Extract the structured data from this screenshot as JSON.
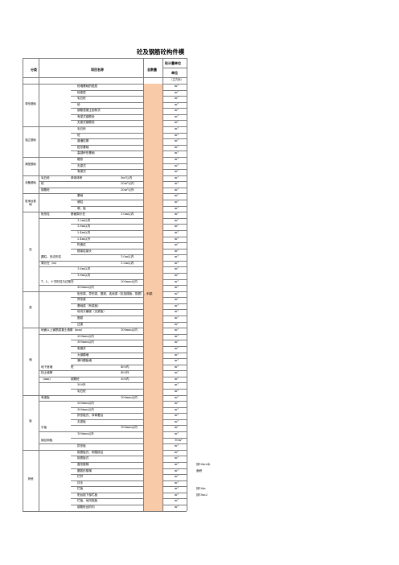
{
  "title": "砼及钢筋砼构件模",
  "header": {
    "col_category": "分类",
    "col_item": "项目名称",
    "col_total": "总数量",
    "col_unit_group": "砼计量单位",
    "col_unit": "单位"
  },
  "unit_note": "（立方米）",
  "colors": {
    "qty_fill": "#f9caa8",
    "grid": "#7a7a7a"
  },
  "categories": [
    {
      "label": "带形基础"
    },
    {
      "label": "独立基础"
    },
    {
      "label": "满堂基础"
    },
    {
      "label": "设备基础"
    },
    {
      "label": "桩承台基础"
    },
    {
      "label": "柱"
    },
    {
      "label": "梁"
    },
    {
      "label": "墙"
    },
    {
      "label": "板"
    },
    {
      "label": "其他"
    }
  ],
  "rows": [
    {
      "item": "砼墙基础的垫层",
      "unit": "m³"
    },
    {
      "item": "砼垫层",
      "unit": "m³"
    },
    {
      "item": "毛石砼",
      "unit": "m³"
    },
    {
      "item": "砼",
      "unit": "m³"
    },
    {
      "item": "钢筋混凝土肋条式",
      "unit": "m³"
    },
    {
      "item": "有梁式钢筋砼",
      "unit": "m³"
    },
    {
      "item": "无梁式钢筋砼",
      "unit": "m³"
    },
    {
      "item": "毛石砼",
      "unit": "m³"
    },
    {
      "item": "砼",
      "unit": "m³"
    },
    {
      "item": "普通柱基",
      "unit": "m³"
    },
    {
      "item": "桩形基础",
      "unit": "m³"
    },
    {
      "item": "高颈杯形基础",
      "unit": "m³"
    },
    {
      "item": "箱形",
      "unit": "m³"
    },
    {
      "item": "无梁式",
      "unit": "m³"
    },
    {
      "item": "有梁式",
      "unit": "m³"
    },
    {
      "sub": "毛石砼",
      "mid": "单体体积",
      "item": "5m³以内",
      "unit": "m³"
    },
    {
      "sub": "砼",
      "item": "20m³以内",
      "unit": "m³"
    },
    {
      "sub": "钢筋砼",
      "item": "20m³以外",
      "unit": "m³"
    },
    {
      "item": "基础",
      "unit": "m³"
    },
    {
      "item": "墙柱",
      "unit": "m³"
    },
    {
      "item": "墩、板",
      "unit": "m³"
    },
    {
      "sub": "矩形柱",
      "mid": "断面周长在",
      "item": "1.0m以内",
      "unit": "m³"
    },
    {
      "item": "1.2m以内",
      "unit": "m³"
    },
    {
      "item": "1.8m以内",
      "unit": "m³"
    },
    {
      "item": "2.4m以内",
      "unit": "m³"
    },
    {
      "item": "2.4m以外",
      "unit": "m³"
    },
    {
      "item": "构造柱",
      "unit": "m³"
    },
    {
      "item": "框架柱接头",
      "unit": "m³"
    },
    {
      "sub": "圆柱、多边形柱",
      "item": "1.0m以内",
      "unit": "m³"
    },
    {
      "sub": "周长在（m）",
      "item": "1.2m以内",
      "unit": "m³"
    },
    {
      "item": "1.6m以内",
      "unit": "m³"
    },
    {
      "item": "1.8m以内",
      "unit": "m³"
    },
    {
      "sub": "T、L、十字形柱与边宽在",
      "item": "200mm以内",
      "unit": "m³"
    },
    {
      "item": "300mm以内",
      "unit": "m³"
    },
    {
      "item": "矩形梁、异形梁、圈梁、连续梁（包括楼板、挑檐）、斜梁",
      "unit": "m³"
    },
    {
      "item": "异形梁",
      "unit": "m³"
    },
    {
      "item": "基础梁（有梁板）",
      "unit": "m³"
    },
    {
      "item": "地沟又横梁（无梁板）",
      "unit": "m³"
    },
    {
      "item": "圈梁",
      "unit": "m³"
    },
    {
      "item": "过梁",
      "unit": "m³"
    },
    {
      "sub": "地面以上钢筋混凝土墙厚（mm）",
      "item": "100mm以内",
      "unit": "m³"
    },
    {
      "item": "200mm以内",
      "unit": "m³"
    },
    {
      "item": "300mm以内",
      "unit": "m³"
    },
    {
      "item": "电梯井",
      "unit": "m³"
    },
    {
      "item": "大钢模墙",
      "unit": "m³"
    },
    {
      "item": "滑升模板墙",
      "unit": "m³"
    },
    {
      "sub": "地下室墙",
      "mid": "砼",
      "item": "400内",
      "unit": "m³"
    },
    {
      "sub": "挡土墙厚",
      "item": "400外",
      "unit": "m³"
    },
    {
      "sub": "（mm）",
      "mid": "钢筋砼",
      "item": "300内",
      "unit": "m³"
    },
    {
      "item": "300外",
      "unit": "m³"
    },
    {
      "item": "毛石砼",
      "unit": "m³"
    },
    {
      "sub": "有梁板",
      "item": "100mm以内",
      "unit": "m³"
    },
    {
      "item": "200mm以内",
      "unit": "m³"
    },
    {
      "item": "300mm以内",
      "unit": "m³"
    },
    {
      "item": "拱形板式、体育看台",
      "unit": "m³"
    },
    {
      "item": "无梁板",
      "unit": "m³"
    },
    {
      "sub": "平板",
      "item": "100mm以内",
      "unit": "m³"
    },
    {
      "item": "100mm以外",
      "unit": "m³"
    },
    {
      "sub": "钢丝网板",
      "unit": "10m²"
    },
    {
      "item": "拱形板",
      "unit": "m³"
    },
    {
      "item": "挑檐板式、雨篷挑沿",
      "unit": "m³"
    },
    {
      "item": "挑檐板式",
      "unit": "m³"
    },
    {
      "item": "直形楼梯",
      "unit": "m³",
      "note": "按10m2水"
    },
    {
      "item": "圆弧形楼梯",
      "unit": "m³",
      "note": "面积"
    },
    {
      "item": "栏杆",
      "unit": "m³"
    },
    {
      "item": "扶手",
      "unit": "m³"
    },
    {
      "item": "栏板",
      "unit": "m³",
      "note": "按10m"
    },
    {
      "item": "阳台挑下部栏板",
      "unit": "m³",
      "note": "按10m2"
    },
    {
      "item": "栏板、地沟挑板",
      "unit": "m³"
    },
    {
      "item": "钢筋砼台阶内",
      "unit": "m³"
    }
  ]
}
